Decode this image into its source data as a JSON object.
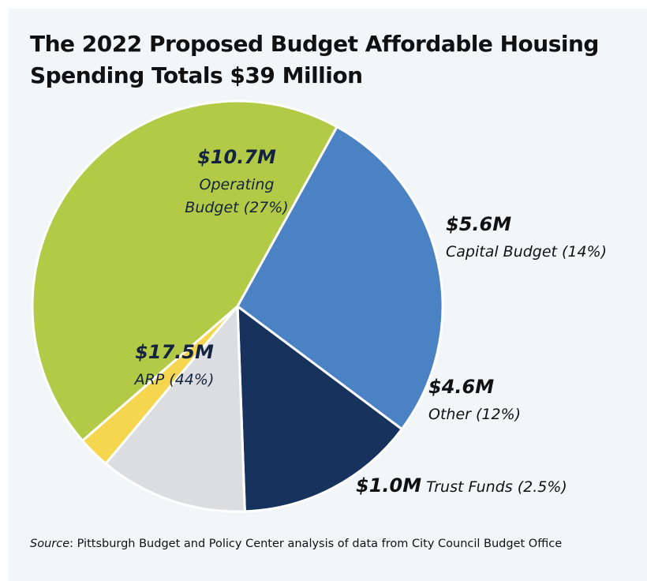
{
  "title_line1": "The 2022 Proposed Budget Affordable Housing",
  "title_line2": "Spending Totals $39 Million",
  "chart_data": {
    "type": "pie",
    "units": "$ millions",
    "slices": [
      {
        "name": "Operating Budget",
        "value": 10.7,
        "percent": "27%",
        "value_label": "$10.7M",
        "label_lines": [
          "Operating",
          "Budget (27%)"
        ],
        "color": "#4a82c4",
        "text_color": "#14233f"
      },
      {
        "name": "Capital Budget",
        "value": 5.6,
        "percent": "14%",
        "value_label": "$5.6M",
        "label_lines": [
          "Capital Budget (14%)"
        ],
        "color": "#18325e",
        "text_color": "#111111"
      },
      {
        "name": "Other",
        "value": 4.6,
        "percent": "12%",
        "value_label": "$4.6M",
        "label_lines": [
          "Other (12%)"
        ],
        "color": "#dcdde1",
        "text_color": "#111111"
      },
      {
        "name": "Trust Funds",
        "value": 1.0,
        "percent": "2.5%",
        "value_label": "$1.0M",
        "label_lines": [
          "Trust Funds (2.5%)"
        ],
        "color": "#f5d64e",
        "text_color": "#111111"
      },
      {
        "name": "ARP",
        "value": 17.5,
        "percent": "44%",
        "value_label": "$17.5M",
        "label_lines": [
          "ARP (44%)"
        ],
        "color": "#b2ca45",
        "text_color": "#14233f"
      }
    ]
  },
  "source_label": "Source",
  "source_text": ": Pittsburgh Budget and Policy Center analysis of data from City Council Budget Office"
}
